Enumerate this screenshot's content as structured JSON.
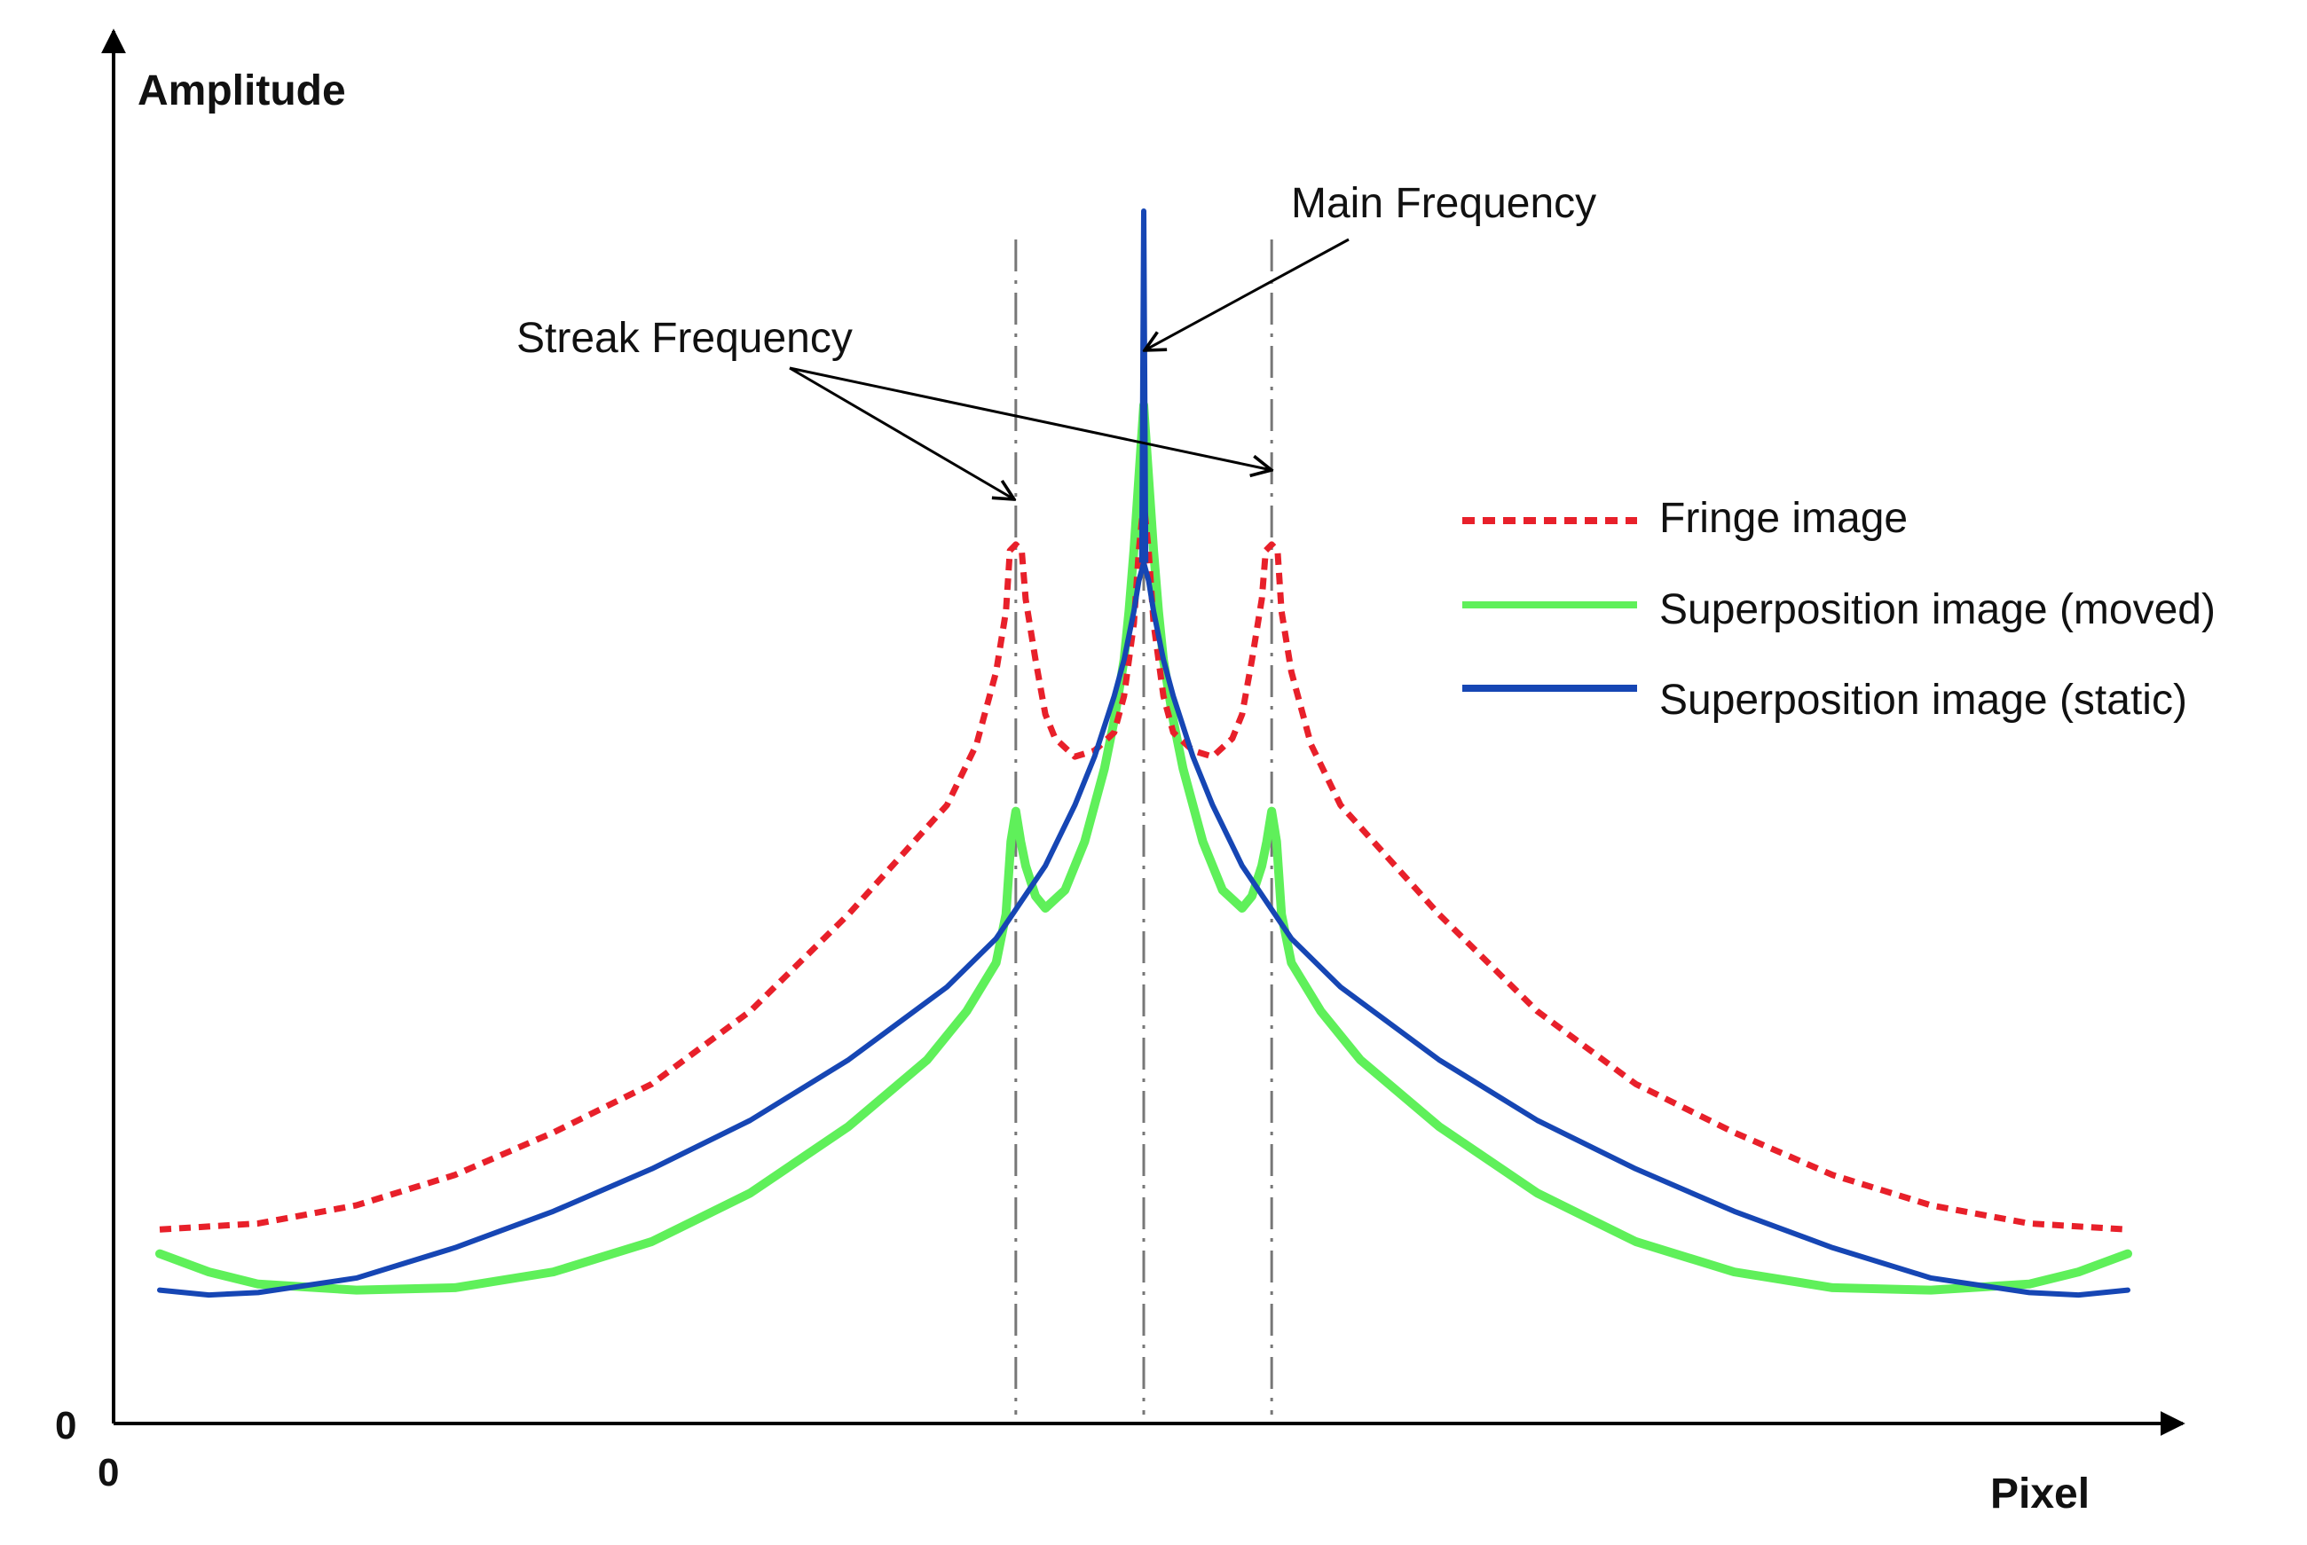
{
  "chart_data": {
    "type": "line",
    "title": "",
    "xlabel": "Pixel",
    "ylabel": "Amplitude",
    "x_origin_label": "0",
    "y_origin_label": "0",
    "xlim": [
      -100,
      100
    ],
    "ylim": [
      0,
      100
    ],
    "grid": false,
    "legend_position": "right",
    "annotations": {
      "main": "Main Frequency",
      "streak": "Streak Frequency"
    },
    "reference_lines_x": [
      -13,
      0,
      13
    ],
    "series": [
      {
        "name": "Fringe image",
        "color": "#e8202a",
        "style": "dotted",
        "points": [
          [
            -100,
            16
          ],
          [
            -90,
            16.5
          ],
          [
            -80,
            18
          ],
          [
            -70,
            20.5
          ],
          [
            -60,
            24
          ],
          [
            -50,
            28
          ],
          [
            -40,
            34
          ],
          [
            -30,
            42
          ],
          [
            -20,
            51
          ],
          [
            -17,
            56
          ],
          [
            -15,
            62
          ],
          [
            -14,
            67
          ],
          [
            -13.6,
            72
          ],
          [
            -13,
            72.5
          ],
          [
            -12.4,
            72
          ],
          [
            -12,
            68
          ],
          [
            -11,
            63
          ],
          [
            -10,
            58.5
          ],
          [
            -9,
            56.5
          ],
          [
            -7,
            55
          ],
          [
            -5,
            55.5
          ],
          [
            -3,
            57
          ],
          [
            -2,
            60
          ],
          [
            -1,
            66
          ],
          [
            -0.5,
            72
          ],
          [
            0,
            76
          ],
          [
            0.5,
            72
          ],
          [
            1,
            66
          ],
          [
            2,
            60
          ],
          [
            3,
            57
          ],
          [
            5,
            55.5
          ],
          [
            7,
            55
          ],
          [
            9,
            56.5
          ],
          [
            10,
            58.5
          ],
          [
            11,
            63
          ],
          [
            12,
            68
          ],
          [
            12.4,
            72
          ],
          [
            13,
            72.5
          ],
          [
            13.6,
            72
          ],
          [
            14,
            67
          ],
          [
            15,
            62
          ],
          [
            17,
            56
          ],
          [
            20,
            51
          ],
          [
            30,
            42
          ],
          [
            40,
            34
          ],
          [
            50,
            28
          ],
          [
            60,
            24
          ],
          [
            70,
            20.5
          ],
          [
            80,
            18
          ],
          [
            90,
            16.5
          ],
          [
            100,
            16
          ]
        ]
      },
      {
        "name": "Superposition image (moved)",
        "color": "#5ff05a",
        "style": "solid",
        "points": [
          [
            -100,
            14
          ],
          [
            -95,
            12.5
          ],
          [
            -90,
            11.5
          ],
          [
            -80,
            11
          ],
          [
            -70,
            11.2
          ],
          [
            -60,
            12.5
          ],
          [
            -50,
            15
          ],
          [
            -40,
            19
          ],
          [
            -30,
            24.5
          ],
          [
            -22,
            30
          ],
          [
            -18,
            34
          ],
          [
            -15,
            38
          ],
          [
            -14,
            42
          ],
          [
            -13.5,
            48
          ],
          [
            -13,
            50.5
          ],
          [
            -12.5,
            48
          ],
          [
            -12,
            46
          ],
          [
            -11,
            43.5
          ],
          [
            -10,
            42.5
          ],
          [
            -8,
            44
          ],
          [
            -6,
            48
          ],
          [
            -4,
            54
          ],
          [
            -3,
            58
          ],
          [
            -2,
            63
          ],
          [
            -1.5,
            67
          ],
          [
            -1,
            72
          ],
          [
            -0.5,
            78
          ],
          [
            0,
            84
          ],
          [
            0.5,
            78
          ],
          [
            1,
            72
          ],
          [
            1.5,
            67
          ],
          [
            2,
            63
          ],
          [
            3,
            58
          ],
          [
            4,
            54
          ],
          [
            6,
            48
          ],
          [
            8,
            44
          ],
          [
            10,
            42.5
          ],
          [
            11,
            43.5
          ],
          [
            12,
            46
          ],
          [
            12.5,
            48
          ],
          [
            13,
            50.5
          ],
          [
            13.5,
            48
          ],
          [
            14,
            42
          ],
          [
            15,
            38
          ],
          [
            18,
            34
          ],
          [
            22,
            30
          ],
          [
            30,
            24.5
          ],
          [
            40,
            19
          ],
          [
            50,
            15
          ],
          [
            60,
            12.5
          ],
          [
            70,
            11.2
          ],
          [
            80,
            11
          ],
          [
            90,
            11.5
          ],
          [
            95,
            12.5
          ],
          [
            100,
            14
          ]
        ]
      },
      {
        "name": "Superposition image (static)",
        "color": "#1646b4",
        "style": "solid",
        "points": [
          [
            -100,
            11
          ],
          [
            -95,
            10.6
          ],
          [
            -90,
            10.8
          ],
          [
            -80,
            12
          ],
          [
            -70,
            14.5
          ],
          [
            -60,
            17.5
          ],
          [
            -50,
            21
          ],
          [
            -40,
            25
          ],
          [
            -30,
            30
          ],
          [
            -20,
            36
          ],
          [
            -15,
            40
          ],
          [
            -10,
            46
          ],
          [
            -7,
            51
          ],
          [
            -5,
            55
          ],
          [
            -3,
            60
          ],
          [
            -2,
            63
          ],
          [
            -1,
            67
          ],
          [
            -0.5,
            69.5
          ],
          [
            0,
            71
          ],
          [
            0.5,
            69.5
          ],
          [
            1,
            67
          ],
          [
            2,
            63
          ],
          [
            3,
            60
          ],
          [
            5,
            55
          ],
          [
            7,
            51
          ],
          [
            10,
            46
          ],
          [
            15,
            40
          ],
          [
            20,
            36
          ],
          [
            30,
            30
          ],
          [
            40,
            25
          ],
          [
            50,
            21
          ],
          [
            60,
            17.5
          ],
          [
            70,
            14.5
          ],
          [
            80,
            12
          ],
          [
            90,
            10.8
          ],
          [
            95,
            10.6
          ],
          [
            100,
            11
          ]
        ],
        "spike": [
          [
            -0.2,
            71
          ],
          [
            0,
            100
          ],
          [
            0.2,
            71
          ]
        ]
      }
    ]
  }
}
